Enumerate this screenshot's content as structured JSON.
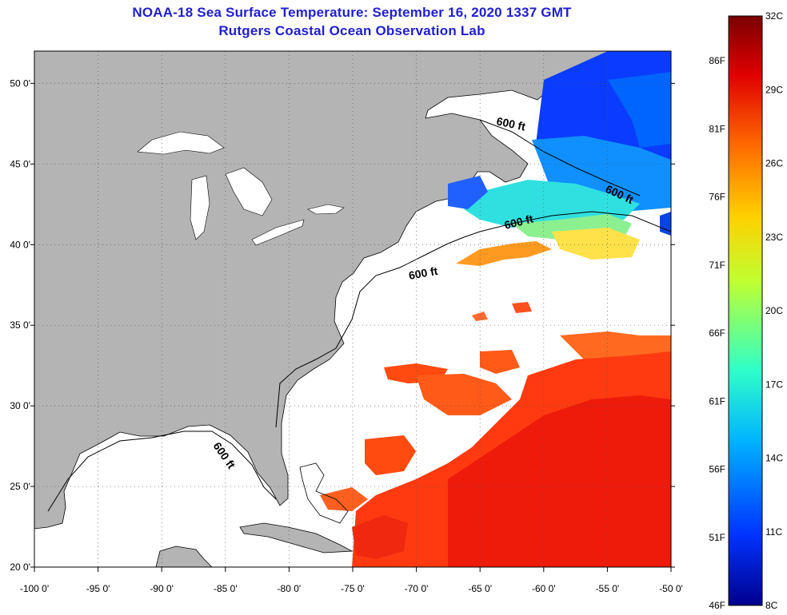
{
  "title": {
    "line1": "NOAA-18 Sea Surface Temperature:  September 16, 2020 1337 GMT",
    "line2": "Rutgers Coastal Ocean Observation Lab"
  },
  "map": {
    "lon_range": [
      -100,
      -50
    ],
    "lat_range": [
      20,
      52
    ],
    "lon_labels": [
      "-100 0'",
      "-95 0'",
      "-90 0'",
      "-85 0'",
      "-80 0'",
      "-75 0'",
      "-70 0'",
      "-65 0'",
      "-60 0'",
      "-55 0'",
      "-50 0'"
    ],
    "lat_labels": [
      "50 0'",
      "45 0'",
      "40 0'",
      "35 0'",
      "30 0'",
      "25 0'",
      "20 0'"
    ],
    "isobath_label": "600 ft",
    "land_color": "#b4b4b4",
    "ocean_nodata_color": "#ffffff"
  },
  "colorbar": {
    "celsius_labels": [
      "32C",
      "29C",
      "26C",
      "23C",
      "20C",
      "17C",
      "14C",
      "11C",
      "8C"
    ],
    "fahrenheit_labels": [
      "86F",
      "81F",
      "76F",
      "71F",
      "66F",
      "61F",
      "56F",
      "51F",
      "46F"
    ],
    "colors": [
      "#800000",
      "#d60000",
      "#ff5a00",
      "#ffc400",
      "#c8ff3a",
      "#42ffbc",
      "#00c8ff",
      "#0050ff",
      "#0000b0"
    ]
  }
}
